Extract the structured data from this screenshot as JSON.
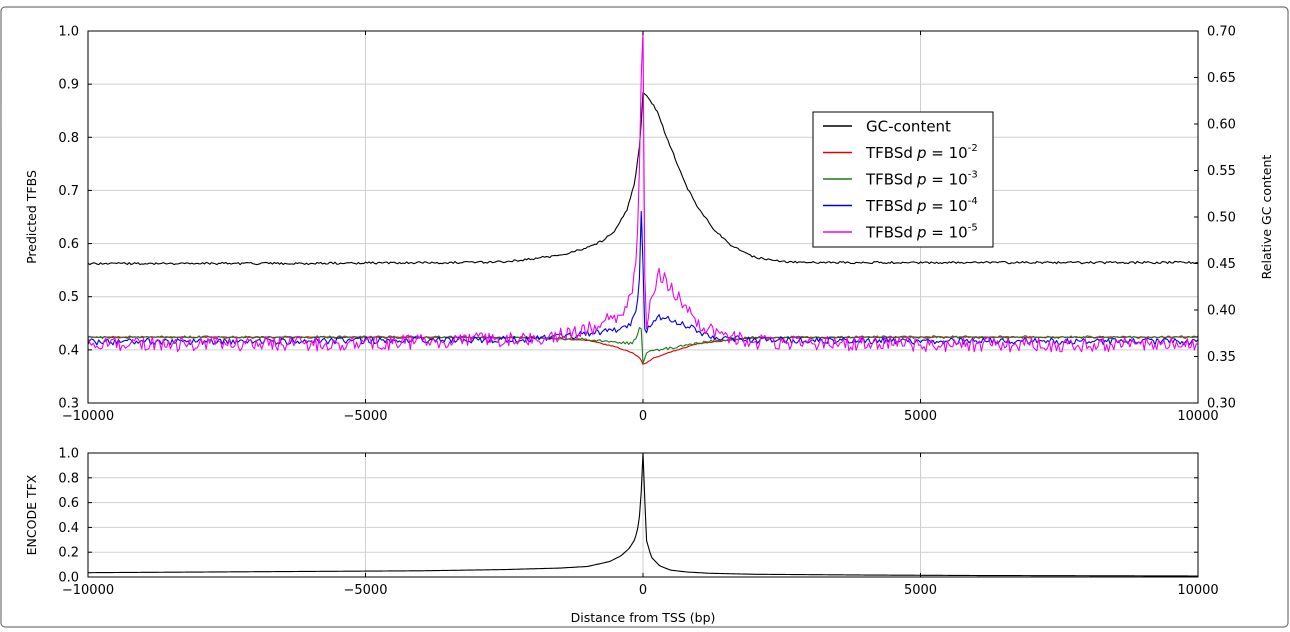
{
  "chart_data": [
    {
      "type": "line",
      "title": "",
      "xlabel": "",
      "ylabel": "Predicted TFBS",
      "y2label": "Relative GC content",
      "xlim": [
        -10000,
        10000
      ],
      "ylim": [
        0.3,
        1.0
      ],
      "y2lim": [
        0.3,
        0.7
      ],
      "grid": true,
      "legend_position": "upper right",
      "x_ticks": [
        "−10000",
        "−5000",
        "0",
        "5000",
        "10000"
      ],
      "y_ticks": [
        "0.3",
        "0.4",
        "0.5",
        "0.6",
        "0.7",
        "0.8",
        "0.9",
        "1.0"
      ],
      "y2_ticks": [
        "0.30",
        "0.35",
        "0.40",
        "0.45",
        "0.50",
        "0.55",
        "0.60",
        "0.65",
        "0.70"
      ],
      "series": [
        {
          "name": "GC-content",
          "legend_label": "GC-content",
          "legend_math": "",
          "axis": "right",
          "color": "#000000",
          "x": [
            -10000,
            -8000,
            -6000,
            -4000,
            -3000,
            -2500,
            -2000,
            -1500,
            -1000,
            -750,
            -500,
            -300,
            -150,
            -50,
            0,
            100,
            250,
            400,
            600,
            800,
            1000,
            1300,
            1600,
            2000,
            2500,
            3000,
            4000,
            6000,
            8000,
            10000
          ],
          "y": [
            0.45,
            0.45,
            0.45,
            0.451,
            0.451,
            0.452,
            0.455,
            0.459,
            0.467,
            0.474,
            0.486,
            0.506,
            0.537,
            0.583,
            0.634,
            0.628,
            0.614,
            0.59,
            0.56,
            0.531,
            0.509,
            0.485,
            0.469,
            0.457,
            0.452,
            0.451,
            0.451,
            0.451,
            0.451,
            0.451
          ],
          "noise": 0.0012
        },
        {
          "name": "TFBSd p=10^-2",
          "legend_label": "TFBSd",
          "legend_math": "-2",
          "axis": "left",
          "color": "#e00000",
          "x": [
            -10000,
            -5000,
            -2000,
            -1000,
            -500,
            -200,
            -50,
            0,
            50,
            200,
            500,
            1000,
            2000,
            5000,
            10000
          ],
          "y": [
            0.424,
            0.424,
            0.423,
            0.418,
            0.406,
            0.395,
            0.384,
            0.373,
            0.375,
            0.385,
            0.396,
            0.412,
            0.423,
            0.424,
            0.424
          ],
          "noise": 0.0008
        },
        {
          "name": "TFBSd p=10^-3",
          "legend_label": "TFBSd",
          "legend_math": "-3",
          "axis": "left",
          "color": "#1a7a1a",
          "x": [
            -10000,
            -5000,
            -2000,
            -1000,
            -500,
            -200,
            -80,
            -40,
            0,
            60,
            150,
            400,
            800,
            1300,
            2000,
            5000,
            10000
          ],
          "y": [
            0.424,
            0.424,
            0.423,
            0.42,
            0.415,
            0.412,
            0.43,
            0.455,
            0.375,
            0.392,
            0.398,
            0.402,
            0.408,
            0.418,
            0.423,
            0.424,
            0.424
          ],
          "noise": 0.0025
        },
        {
          "name": "TFBSd p=10^-4",
          "legend_label": "TFBSd",
          "legend_math": "-4",
          "axis": "left",
          "color": "#0000e0",
          "x": [
            -10000,
            -5000,
            -2000,
            -1000,
            -500,
            -250,
            -120,
            -60,
            -30,
            0,
            40,
            80,
            150,
            300,
            500,
            800,
            1200,
            2000,
            5000,
            10000
          ],
          "y": [
            0.415,
            0.417,
            0.42,
            0.43,
            0.436,
            0.445,
            0.47,
            0.54,
            0.67,
            0.56,
            0.41,
            0.44,
            0.45,
            0.462,
            0.456,
            0.445,
            0.425,
            0.418,
            0.417,
            0.415
          ],
          "noise": 0.006
        },
        {
          "name": "TFBSd p=10^-5",
          "legend_label": "TFBSd",
          "legend_math": "-5",
          "axis": "left",
          "color": "#ee00ee",
          "x": [
            -10000,
            -5000,
            -2000,
            -1200,
            -800,
            -400,
            -200,
            -100,
            -50,
            -20,
            0,
            40,
            100,
            200,
            300,
            500,
            700,
            1000,
            1500,
            2000,
            5000,
            10000
          ],
          "y": [
            0.41,
            0.412,
            0.422,
            0.432,
            0.445,
            0.47,
            0.5,
            0.6,
            0.8,
            0.99,
            1.0,
            0.43,
            0.47,
            0.52,
            0.545,
            0.515,
            0.49,
            0.45,
            0.425,
            0.415,
            0.41,
            0.41
          ],
          "noise": 0.014
        }
      ]
    },
    {
      "type": "line",
      "title": "",
      "xlabel": "Distance from TSS (bp)",
      "ylabel": "ENCODE TFX",
      "xlim": [
        -10000,
        10000
      ],
      "ylim": [
        0.0,
        1.0
      ],
      "grid": true,
      "x_ticks": [
        "−10000",
        "−5000",
        "0",
        "5000",
        "10000"
      ],
      "y_ticks": [
        "0.0",
        "0.2",
        "0.4",
        "0.6",
        "0.8",
        "1.0"
      ],
      "series": [
        {
          "name": "ENCODE TFX",
          "color": "#000000",
          "x": [
            -10000,
            -8000,
            -6000,
            -4000,
            -2500,
            -1500,
            -1000,
            -600,
            -400,
            -250,
            -150,
            -100,
            -60,
            -30,
            -10,
            0,
            60,
            150,
            300,
            500,
            800,
            1200,
            2000,
            4000,
            6000,
            8000,
            10000
          ],
          "y": [
            0.035,
            0.04,
            0.045,
            0.05,
            0.06,
            0.072,
            0.085,
            0.125,
            0.17,
            0.23,
            0.3,
            0.38,
            0.5,
            0.7,
            0.95,
            1.0,
            0.3,
            0.16,
            0.09,
            0.055,
            0.04,
            0.03,
            0.022,
            0.016,
            0.012,
            0.01,
            0.008
          ]
        }
      ]
    }
  ]
}
